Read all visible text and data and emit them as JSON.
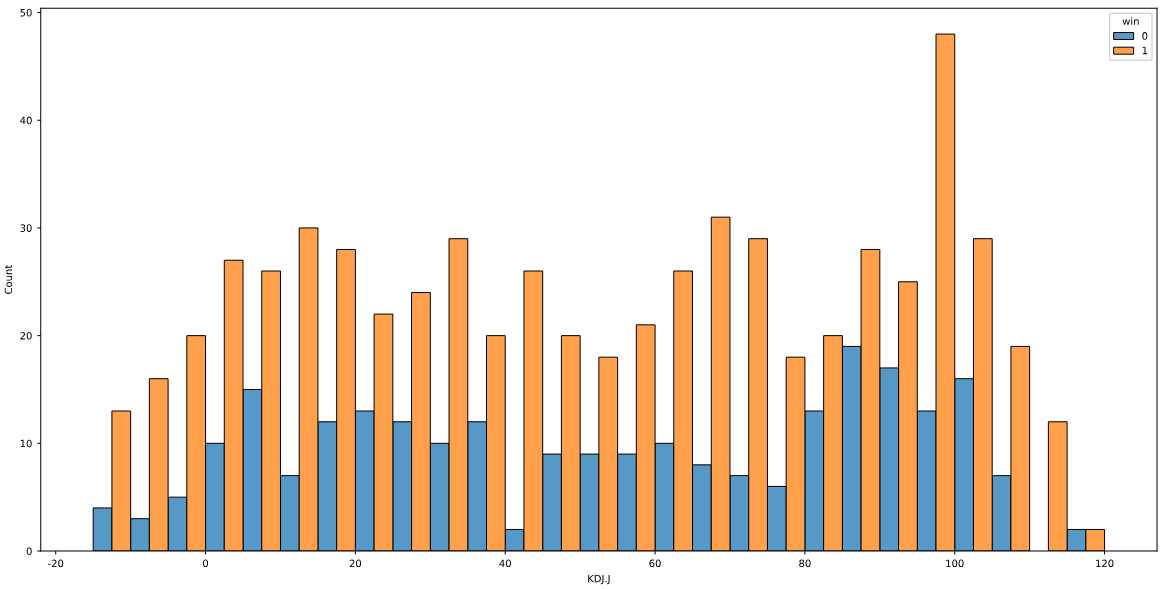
{
  "chart_data": {
    "type": "histogram",
    "xlabel": "KDJ.J",
    "ylabel": "Count",
    "legend_title": "win",
    "legend": "top right",
    "grid": false,
    "bins": [
      -15,
      -10,
      -5,
      0,
      5,
      10,
      15,
      20,
      25,
      30,
      35,
      40,
      45,
      50,
      55,
      60,
      65,
      70,
      75,
      80,
      85,
      90,
      95,
      100,
      105,
      110,
      115,
      120
    ],
    "series": [
      {
        "name": "0",
        "color": "#5799c6",
        "values": [
          4,
          3,
          5,
          10,
          15,
          7,
          12,
          13,
          12,
          10,
          12,
          2,
          9,
          9,
          9,
          10,
          8,
          7,
          6,
          13,
          19,
          17,
          13,
          16,
          7,
          0,
          2
        ]
      },
      {
        "name": "1",
        "color": "#ffa04c",
        "values": [
          13,
          16,
          20,
          27,
          26,
          30,
          28,
          22,
          24,
          29,
          20,
          26,
          20,
          18,
          21,
          26,
          31,
          29,
          18,
          20,
          28,
          25,
          48,
          29,
          19,
          12,
          2
        ]
      }
    ],
    "xlim": [
      -22,
      127
    ],
    "xticks": [
      -20,
      0,
      20,
      40,
      60,
      80,
      100,
      120
    ],
    "ylim": [
      0,
      50.4
    ],
    "yticks": [
      0,
      10,
      20,
      30,
      40,
      50
    ]
  }
}
